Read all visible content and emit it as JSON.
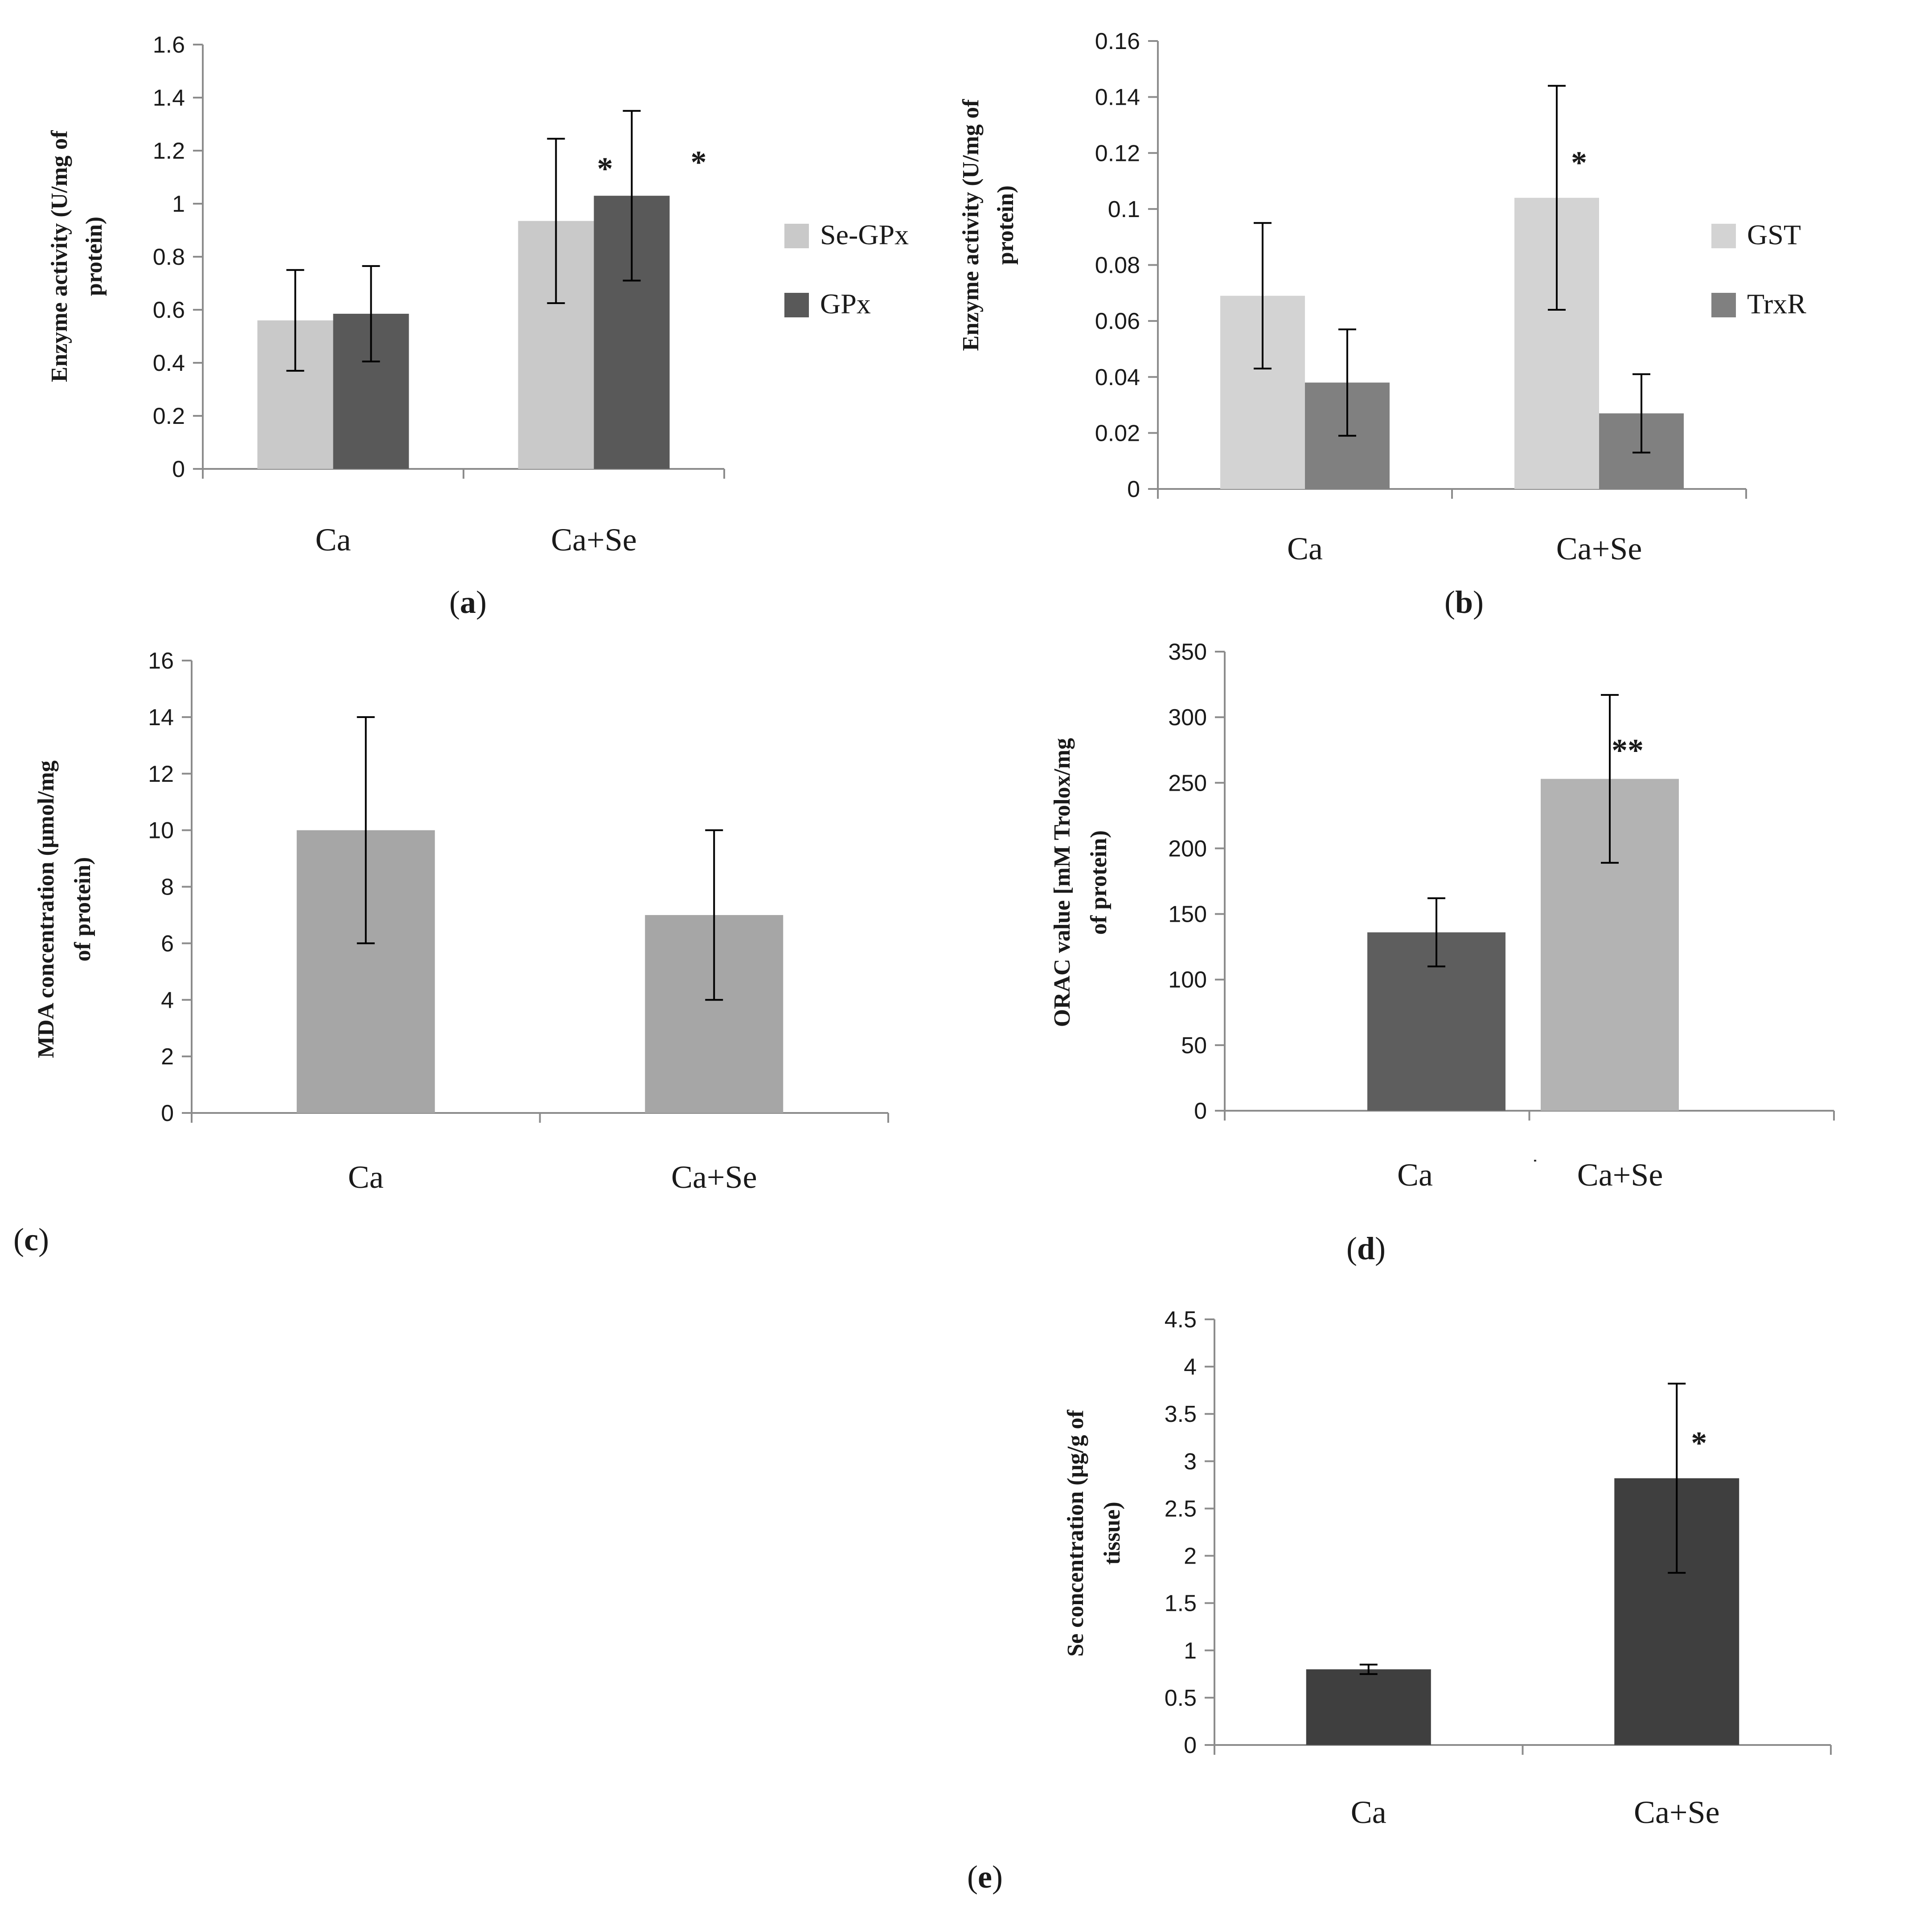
{
  "figure": {
    "colors": {
      "light": "#c9c9c9",
      "dark": "#595959",
      "mid": "#808080",
      "gray": "#a6a6a6",
      "darker": "#3f3f3f",
      "axis": "#8c8c8c",
      "error": "#000000"
    }
  },
  "chart_data": [
    {
      "id": "a",
      "type": "bar",
      "panel_label": "(a)",
      "title": "",
      "xlabel": "",
      "ylabel": "Enzyme activity (U/mg of protein)",
      "ylabel_lines": [
        "Enzyme activity (U/mg of",
        "protein)"
      ],
      "categories": [
        "Ca",
        "Ca+Se"
      ],
      "ylim": [
        0,
        1.6
      ],
      "yticks": [
        0,
        0.2,
        0.4,
        0.6,
        0.8,
        1,
        1.2,
        1.4,
        1.6
      ],
      "ytick_labels": [
        "0",
        "0.2",
        "0.4",
        "0.6",
        "0.8",
        "1",
        "1.2",
        "1.4",
        "1.6"
      ],
      "series": [
        {
          "name": "Se-GPx",
          "color": "#c9c9c9",
          "values": [
            0.56,
            0.935
          ],
          "errors": [
            0.19,
            0.31
          ],
          "annotations": [
            "",
            "*"
          ]
        },
        {
          "name": "GPx",
          "color": "#595959",
          "values": [
            0.585,
            1.03
          ],
          "errors": [
            0.18,
            0.32
          ],
          "annotations": [
            "",
            "*"
          ]
        }
      ],
      "legend": "right",
      "grid": false
    },
    {
      "id": "b",
      "type": "bar",
      "panel_label": "(b)",
      "title": "",
      "xlabel": "",
      "ylabel": "Enzyme activity (U/mg of protein)",
      "ylabel_lines": [
        "Enzyme activity (U/mg of",
        "protein)"
      ],
      "categories": [
        "Ca",
        "Ca+Se"
      ],
      "ylim": [
        0,
        0.16
      ],
      "yticks": [
        0,
        0.02,
        0.04,
        0.06,
        0.08,
        0.1,
        0.12,
        0.14,
        0.16
      ],
      "ytick_labels": [
        "0",
        "0.02",
        "0.04",
        "0.06",
        "0.08",
        "0.1",
        "0.12",
        "0.14",
        "0.16"
      ],
      "series": [
        {
          "name": "GST",
          "color": "#d3d3d3",
          "values": [
            0.069,
            0.104
          ],
          "errors": [
            0.026,
            0.04
          ],
          "annotations": [
            "",
            "*"
          ]
        },
        {
          "name": "TrxR",
          "color": "#808080",
          "values": [
            0.038,
            0.027
          ],
          "errors": [
            0.019,
            0.014
          ],
          "annotations": [
            "",
            ""
          ]
        }
      ],
      "legend": "right",
      "grid": false
    },
    {
      "id": "c",
      "type": "bar",
      "panel_label": "(c)",
      "title": "",
      "xlabel": "",
      "ylabel": "MDA concentration (μmol/mg of protein)",
      "ylabel_lines": [
        "MDA concentration (μmol/mg",
        "of protein)"
      ],
      "categories": [
        "Ca",
        "Ca+Se"
      ],
      "ylim": [
        0,
        16
      ],
      "yticks": [
        0,
        2,
        4,
        6,
        8,
        10,
        12,
        14,
        16
      ],
      "ytick_labels": [
        "0",
        "2",
        "4",
        "6",
        "8",
        "10",
        "12",
        "14",
        "16"
      ],
      "series": [
        {
          "name": "MDA",
          "color": "#a6a6a6",
          "values": [
            10,
            7
          ],
          "errors": [
            4,
            3
          ],
          "annotations": [
            "",
            ""
          ]
        }
      ],
      "legend": "none",
      "grid": false
    },
    {
      "id": "d",
      "type": "bar",
      "panel_label": "(d)",
      "title": "",
      "xlabel": "",
      "ylabel": "ORAC value [mM Trolox/mg of protein)",
      "ylabel_lines": [
        "ORAC value [mM Trolox/mg",
        "of protein)"
      ],
      "categories": [
        "Ca",
        "Ca+Se"
      ],
      "ylim": [
        0,
        350
      ],
      "yticks": [
        0,
        50,
        100,
        150,
        200,
        250,
        300,
        350
      ],
      "ytick_labels": [
        "0",
        "50",
        "100",
        "150",
        "200",
        "250",
        "300",
        "350"
      ],
      "series": [
        {
          "name": "ORAC",
          "colors": [
            "#5e5e5e",
            "#b3b3b3"
          ],
          "values": [
            136,
            253
          ],
          "errors": [
            26,
            64
          ],
          "annotations": [
            "",
            "**"
          ]
        }
      ],
      "legend": "none",
      "grid": false
    },
    {
      "id": "e",
      "type": "bar",
      "panel_label": "(e)",
      "title": "",
      "xlabel": "",
      "ylabel": "Se concentration (μg/g of tissue)",
      "ylabel_lines": [
        "Se concentration (μg/g of",
        "tissue)"
      ],
      "categories": [
        "Ca",
        "Ca+Se"
      ],
      "ylim": [
        0,
        4.5
      ],
      "yticks": [
        0,
        0.5,
        1,
        1.5,
        2,
        2.5,
        3,
        3.5,
        4,
        4.5
      ],
      "ytick_labels": [
        "0",
        "0.5",
        "1",
        "1.5",
        "2",
        "2.5",
        "3",
        "3.5",
        "4",
        "4.5"
      ],
      "series": [
        {
          "name": "Se",
          "color": "#3f3f3f",
          "values": [
            0.8,
            2.82
          ],
          "errors": [
            0.05,
            1.0
          ],
          "annotations": [
            "",
            "*"
          ]
        }
      ],
      "legend": "none",
      "grid": false
    }
  ]
}
